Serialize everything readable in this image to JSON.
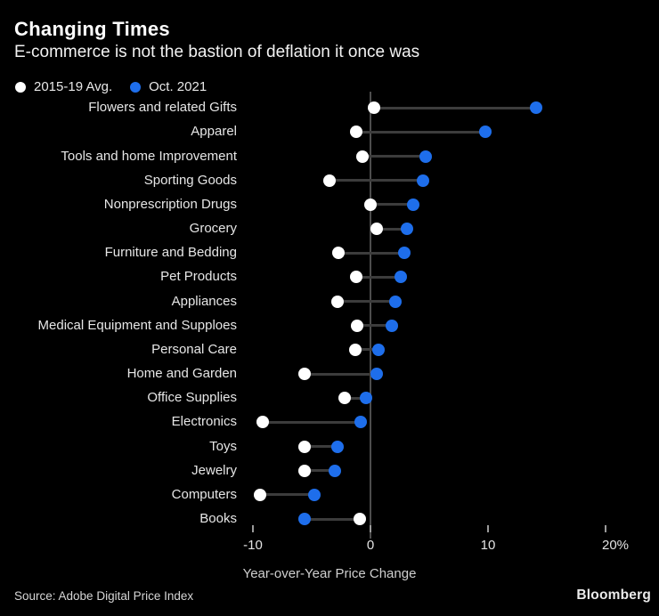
{
  "header": {
    "title": "Changing Times",
    "subtitle": "E-commerce is not the bastion of deflation it once was"
  },
  "legend": {
    "items": [
      {
        "label": "2015-19 Avg.",
        "color": "#ffffff"
      },
      {
        "label": "Oct. 2021",
        "color": "#1e6eeb"
      }
    ]
  },
  "chart_data": {
    "type": "scatter",
    "subtype": "dumbbell-dot-plot",
    "title": "Changing Times",
    "subtitle": "E-commerce is not the bastion of deflation it once was",
    "xlabel": "Year-over-Year Price Change",
    "ylabel": "",
    "xlim": [
      -11.5,
      22.5
    ],
    "grid": false,
    "legend_position": "top-left",
    "categories": [
      "Flowers and related Gifts",
      "Apparel",
      "Tools and home Improvement",
      "Sporting Goods",
      "Nonprescription Drugs",
      "Grocery",
      "Furniture and Bedding",
      "Pet Products",
      "Appliances",
      "Medical Equipment and Supploes",
      "Personal Care",
      "Home and Garden",
      "Office Supplies",
      "Electronics",
      "Toys",
      "Jewelry",
      "Computers",
      "Books"
    ],
    "series": [
      {
        "name": "2015-19 Avg.",
        "color": "#ffffff",
        "values": [
          0.3,
          -1.2,
          -0.7,
          -3.5,
          0.0,
          0.5,
          -2.7,
          -1.2,
          -2.8,
          -1.1,
          -1.3,
          -5.6,
          -2.2,
          -9.2,
          -5.6,
          -5.6,
          -9.4,
          -0.9
        ]
      },
      {
        "name": "Oct. 2021",
        "color": "#1e6eeb",
        "values": [
          14.1,
          9.8,
          4.7,
          4.5,
          3.6,
          3.1,
          2.9,
          2.6,
          2.1,
          1.8,
          0.7,
          0.5,
          -0.4,
          -0.8,
          -2.8,
          -3.0,
          -4.8,
          -5.6
        ]
      }
    ],
    "xaxis": {
      "ticks": [
        {
          "value": -10,
          "label": "-10"
        },
        {
          "value": 0,
          "label": "0"
        },
        {
          "value": 10,
          "label": "10"
        },
        {
          "value": 20,
          "label": "20%"
        }
      ]
    },
    "zero_line": true
  },
  "footer": {
    "source": "Source: Adobe Digital Price Index",
    "brand": "Bloomberg"
  }
}
